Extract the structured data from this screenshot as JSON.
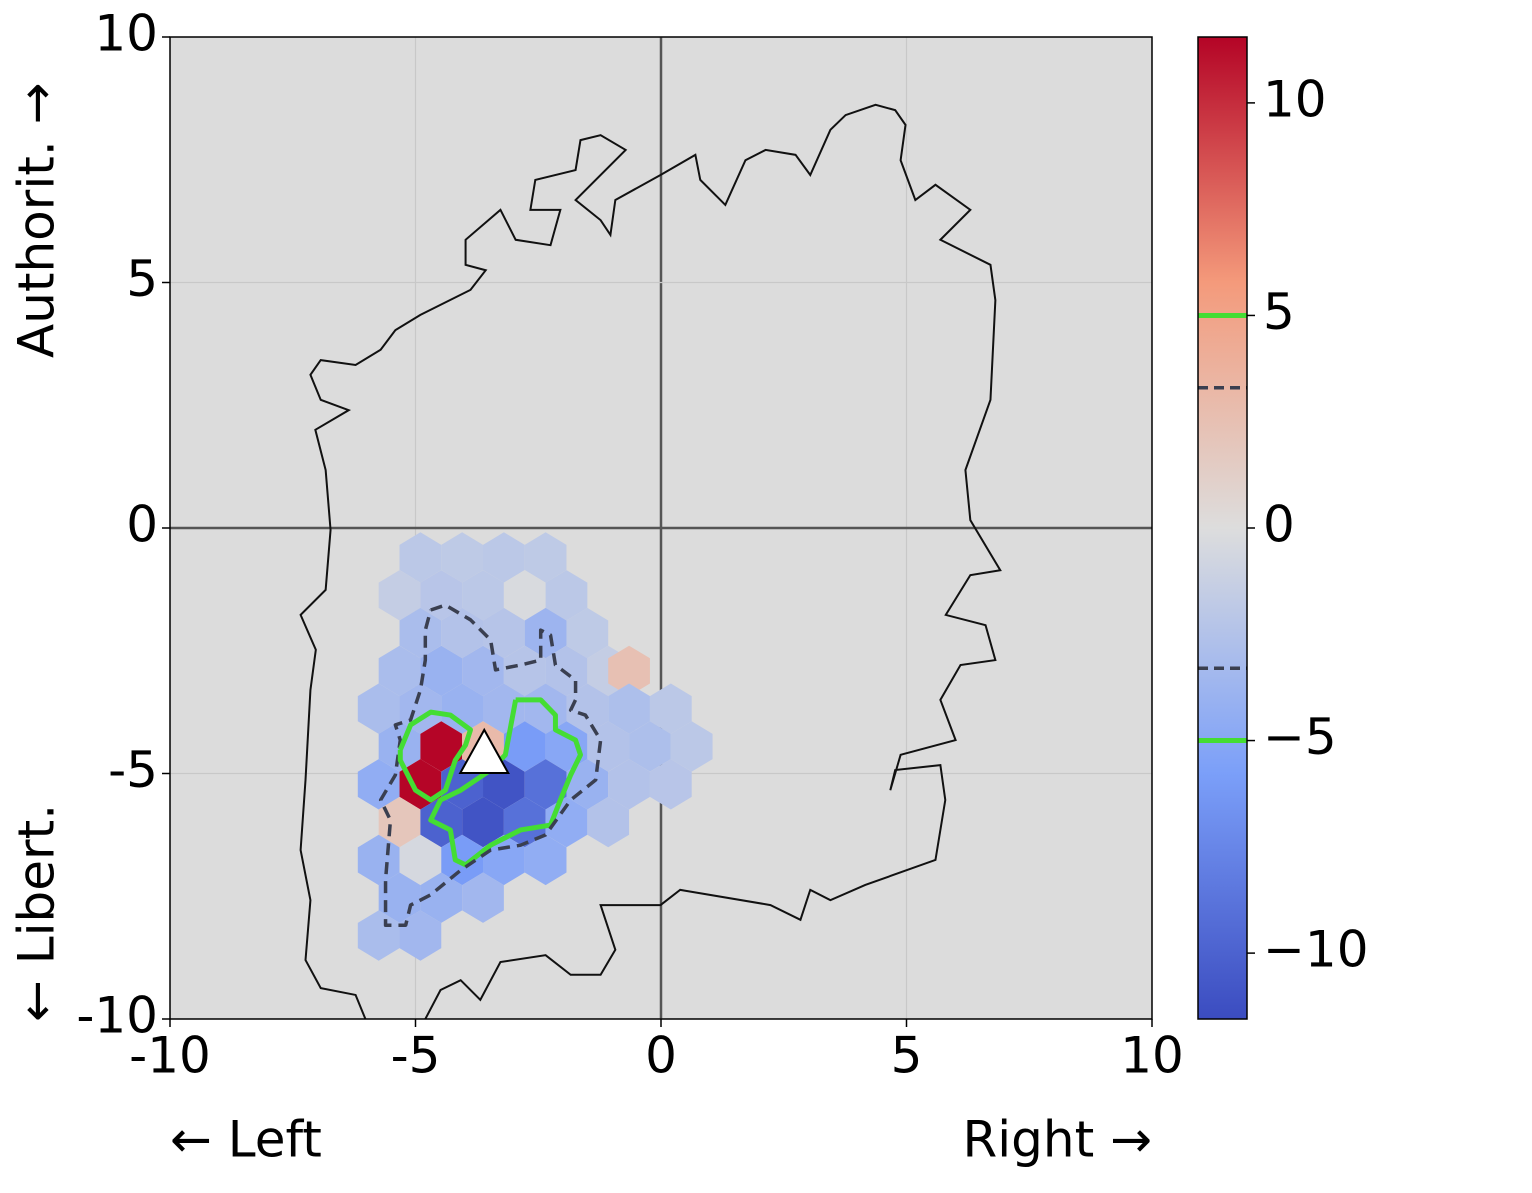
{
  "chart_data": {
    "type": "hexbin",
    "xlabel_left": "← Left",
    "xlabel_right": "Right →",
    "ylabel_top": "Authorit. →",
    "ylabel_bottom": "← Libert.",
    "xlim": [
      -10,
      10
    ],
    "ylim": [
      -10,
      10
    ],
    "xticks": [
      -10,
      -5,
      0,
      5,
      10
    ],
    "yticks": [
      -10,
      -5,
      0,
      5,
      10
    ],
    "grid": true,
    "background": "#dcdcdc",
    "cmap": [
      "#3b4cc0",
      "#7b9ff9",
      "#dddddd",
      "#f49a7b",
      "#b40426"
    ],
    "clim": [
      -11.55,
      11.55
    ],
    "cticks": [
      {
        "value": -10,
        "label": "−10"
      },
      {
        "value": -5,
        "label": "−5"
      },
      0,
      5,
      10
    ],
    "hexbin": {
      "x": [
        -4.9,
        -4.05,
        -3.2,
        -2.35,
        -5.325,
        -4.475,
        -3.625,
        -2.775,
        -1.925,
        -4.9,
        -4.05,
        -3.2,
        -2.35,
        -1.5,
        -5.325,
        -4.475,
        -3.625,
        -2.775,
        -1.925,
        -1.075,
        -0.65,
        -5.75,
        -4.9,
        -4.05,
        -3.2,
        -2.35,
        -1.5,
        -0.65,
        0.2,
        -5.325,
        -4.475,
        -3.625,
        -2.775,
        -1.925,
        -1.075,
        -0.225,
        0.625,
        -5.75,
        -4.9,
        -4.05,
        -3.2,
        -2.35,
        -1.5,
        -0.65,
        0.2,
        -5.325,
        -4.475,
        -3.625,
        -2.775,
        -1.925,
        -1.075,
        -5.75,
        -4.9,
        -4.05,
        -3.2,
        -2.35,
        -5.325,
        -4.475,
        -3.625,
        -5.75,
        -4.9
      ],
      "y": [
        -0.6,
        -0.6,
        -0.6,
        -0.6,
        -1.37,
        -1.37,
        -1.37,
        -1.37,
        -1.37,
        -2.14,
        -2.14,
        -2.14,
        -2.14,
        -2.14,
        -2.91,
        -2.91,
        -2.91,
        -2.91,
        -2.91,
        -2.91,
        -2.91,
        -3.68,
        -3.68,
        -3.68,
        -3.68,
        -3.68,
        -3.68,
        -3.68,
        -3.68,
        -4.45,
        -4.45,
        -4.45,
        -4.45,
        -4.45,
        -4.45,
        -4.45,
        -4.45,
        -5.22,
        -5.22,
        -5.22,
        -5.22,
        -5.22,
        -5.22,
        -5.22,
        -5.22,
        -5.99,
        -5.99,
        -5.99,
        -5.99,
        -5.99,
        -5.99,
        -6.76,
        -6.76,
        -6.76,
        -6.76,
        -6.76,
        -7.53,
        -7.53,
        -7.53,
        -8.3,
        -8.3
      ],
      "values": [
        -2,
        -1.8,
        -2,
        -1.8,
        -1.5,
        -2.2,
        -2,
        -0.3,
        -2,
        -3,
        -2.5,
        -2.3,
        -3.8,
        -1.8,
        -3,
        -4,
        -3.5,
        -2.3,
        -2.5,
        -1.5,
        2.5,
        -3,
        -3.5,
        -4,
        -3.5,
        -3.5,
        -2.5,
        -2.8,
        -2,
        -4,
        11.5,
        3,
        -6,
        -5,
        -2.5,
        -2.8,
        -2,
        -4.5,
        11.5,
        -10,
        -11,
        -9,
        -4,
        -2.5,
        -2.2,
        2,
        -10,
        -11,
        -9,
        -4.5,
        -2.5,
        -4,
        -0.5,
        -6,
        -5,
        -4.5,
        -4,
        -4,
        -3.5,
        -3,
        -3.5
      ]
    },
    "outline": {
      "color": "#111111",
      "x": [
        -6.02,
        -6.22,
        -6.93,
        -7.24,
        -7.14,
        -7.34,
        -7.24,
        -7.14,
        -7.03,
        -7.34,
        -6.83,
        -6.73,
        -6.83,
        -7.04,
        -6.36,
        -6.93,
        -7.14,
        -6.93,
        -6.22,
        -5.71,
        -5.41,
        -4.9,
        -3.88,
        -3.57,
        -3.98,
        -3.98,
        -3.27,
        -2.96,
        -2.25,
        -2.05,
        -2.66,
        -2.56,
        -1.74,
        -1.64,
        -1.23,
        -0.72,
        -1.74,
        -1.23,
        -1.03,
        -0.93,
        -0.01,
        0.7,
        0.8,
        1.31,
        1.72,
        2.13,
        2.74,
        3.04,
        3.45,
        3.76,
        4.37,
        4.77,
        4.98,
        4.88,
        5.18,
        5.59,
        6.3,
        5.69,
        6.71,
        6.81,
        6.71,
        6.2,
        6.3,
        6.91,
        6.3,
        5.8,
        6.61,
        6.81,
        6.1,
        5.69,
        6.0,
        4.88,
        4.67,
        4.77,
        5.69,
        5.79,
        5.59,
        4.16,
        3.45,
        3.04,
        2.84,
        2.23,
        0.39,
        -0.01,
        -1.23,
        -0.93,
        -1.23,
        -1.84,
        -2.35,
        -3.27,
        -3.68,
        -4.08,
        -4.49,
        -4.8
      ],
      "y": [
        -10.0,
        -9.51,
        -9.37,
        -8.8,
        -7.58,
        -6.56,
        -5.13,
        -3.3,
        -2.48,
        -1.77,
        -1.26,
        -0.04,
        1.18,
        2.0,
        2.4,
        2.61,
        3.12,
        3.42,
        3.32,
        3.63,
        4.03,
        4.34,
        4.85,
        5.25,
        5.36,
        5.87,
        6.48,
        5.87,
        5.76,
        6.48,
        6.48,
        7.09,
        7.29,
        7.9,
        8.0,
        7.7,
        6.68,
        6.27,
        5.97,
        6.68,
        7.19,
        7.6,
        7.09,
        6.58,
        7.49,
        7.7,
        7.6,
        7.19,
        8.11,
        8.41,
        8.62,
        8.51,
        8.21,
        7.49,
        6.68,
        6.99,
        6.48,
        5.87,
        5.36,
        4.64,
        2.61,
        1.18,
        0.16,
        -0.86,
        -0.96,
        -1.77,
        -1.98,
        -2.69,
        -2.79,
        -3.5,
        -4.32,
        -4.62,
        -5.34,
        -4.93,
        -4.83,
        -5.54,
        -6.76,
        -7.27,
        -7.58,
        -7.37,
        -7.98,
        -7.68,
        -7.37,
        -7.68,
        -7.68,
        -8.59,
        -9.1,
        -9.1,
        -8.7,
        -8.84,
        -9.61,
        -9.21,
        -9.41,
        -10.0
      ]
    },
    "contours": [
      {
        "level": -5,
        "color": "#44dd33",
        "dash": false,
        "lines": [
          {
            "x": [
              -2.96,
              -2.45,
              -2.15,
              -2.15,
              -1.74,
              -1.64,
              -1.84,
              -2.05,
              -2.25,
              -2.86,
              -3.47,
              -3.98,
              -4.19,
              -4.29,
              -4.69,
              -4.49,
              -4.08,
              -3.47,
              -3.17,
              -2.96
            ],
            "y": [
              -3.5,
              -3.5,
              -3.81,
              -4.11,
              -4.32,
              -4.62,
              -5.03,
              -5.54,
              -6.05,
              -6.15,
              -6.46,
              -6.86,
              -6.76,
              -6.15,
              -5.95,
              -5.54,
              -5.34,
              -4.93,
              -4.62,
              -3.5
            ]
          }
        ]
      },
      {
        "level": -3.3,
        "color": "#3a3f50",
        "dash": true,
        "lines": [
          {
            "x": [
              -4.69,
              -4.39,
              -3.88,
              -3.47,
              -3.37,
              -2.86,
              -2.45,
              -2.45,
              -2.25,
              -2.15,
              -1.74,
              -1.74,
              -1.84,
              -1.54,
              -1.23,
              -1.33,
              -1.84,
              -2.35,
              -2.86,
              -3.47,
              -4.08,
              -4.69,
              -5.1,
              -5.2,
              -5.61,
              -5.61,
              -5.51,
              -5.71,
              -5.41,
              -5.31,
              -5.41,
              -5.1,
              -4.9,
              -4.8,
              -4.8,
              -4.69
            ],
            "y": [
              -1.67,
              -1.57,
              -1.87,
              -2.28,
              -2.89,
              -2.79,
              -2.69,
              -2.08,
              -2.18,
              -2.79,
              -3.1,
              -3.5,
              -3.71,
              -3.81,
              -4.32,
              -5.13,
              -5.54,
              -6.25,
              -6.46,
              -6.56,
              -6.97,
              -7.47,
              -7.68,
              -8.09,
              -8.09,
              -7.17,
              -5.95,
              -5.54,
              -5.03,
              -4.32,
              -4.01,
              -3.91,
              -3.3,
              -2.69,
              -2.08,
              -1.67
            ]
          }
        ]
      },
      {
        "level": 3.3,
        "color": "#3a3f50",
        "dash": true,
        "lines": []
      },
      {
        "level": 5,
        "color": "#44dd33",
        "dash": false,
        "lines": [
          {
            "x": [
              -5.31,
              -5.1,
              -4.69,
              -4.29,
              -3.88,
              -3.98,
              -4.19,
              -4.39,
              -4.69,
              -5.0,
              -5.31,
              -5.31
            ],
            "y": [
              -4.52,
              -4.01,
              -3.75,
              -3.81,
              -4.11,
              -4.42,
              -4.73,
              -5.34,
              -5.54,
              -5.34,
              -4.73,
              -4.52
            ]
          }
        ]
      }
    ],
    "marker": {
      "x": -3.6,
      "y": -4.6
    }
  }
}
